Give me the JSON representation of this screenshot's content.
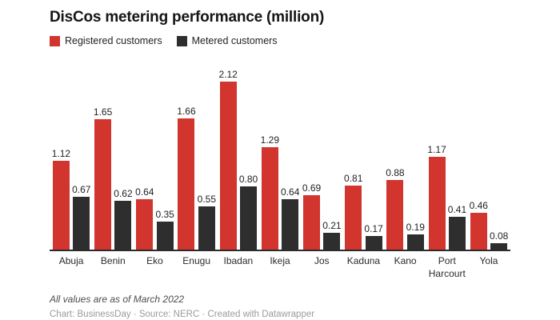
{
  "title": "DisCos metering performance (million)",
  "legend": [
    {
      "label": "Registered customers",
      "color": "#d2342e"
    },
    {
      "label": "Metered customers",
      "color": "#2e2e2e"
    }
  ],
  "chart_data": {
    "type": "bar",
    "categories": [
      "Abuja",
      "Benin",
      "Eko",
      "Enugu",
      "Ibadan",
      "Ikeja",
      "Jos",
      "Kaduna",
      "Kano",
      "Port Harcourt",
      "Yola"
    ],
    "series": [
      {
        "name": "Registered customers",
        "color": "#d2342e",
        "values": [
          1.12,
          1.65,
          0.64,
          1.66,
          2.12,
          1.29,
          0.69,
          0.81,
          0.88,
          1.17,
          0.46
        ]
      },
      {
        "name": "Metered customers",
        "color": "#2e2e2e",
        "values": [
          0.67,
          0.62,
          0.35,
          0.55,
          0.8,
          0.64,
          0.21,
          0.17,
          0.19,
          0.41,
          0.08
        ]
      }
    ],
    "title": "DisCos metering performance (million)",
    "xlabel": "",
    "ylabel": "",
    "ylim": [
      0,
      2.25
    ],
    "grid": false,
    "legend_position": "top-left",
    "value_labels": true,
    "value_label_format": "2-decimals"
  },
  "footer": {
    "note": "All values are as of March 2022",
    "attribution": "Chart: BusinessDay · Source: NERC · Created with Datawrapper"
  }
}
